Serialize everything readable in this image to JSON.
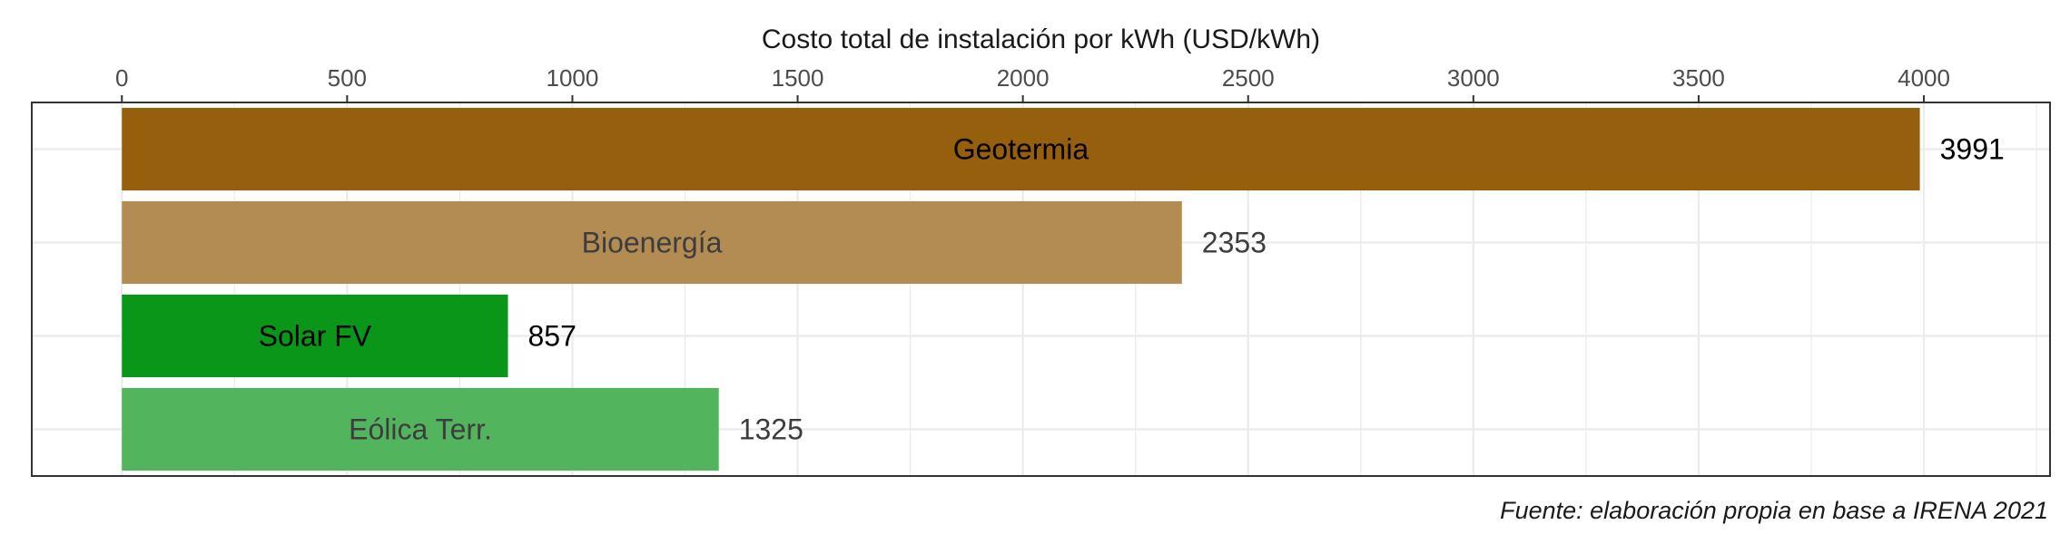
{
  "chart_data": {
    "type": "bar",
    "orientation": "horizontal",
    "xlabel": "Costo total de instalación por kWh (USD/kWh)",
    "xlabel_position": "top",
    "xlim": [
      -200,
      4280
    ],
    "x_ticks": [
      0,
      500,
      1000,
      1500,
      2000,
      2500,
      3000,
      3500,
      4000
    ],
    "grid": true,
    "categories": [
      "Geotermia",
      "Bioenergía",
      "Solar FV",
      "Eólica Terr."
    ],
    "values": [
      3991,
      2353,
      857,
      1325
    ],
    "value_labels": [
      "3991",
      "2353",
      "857",
      "1325"
    ],
    "colors": [
      "#965f0d",
      "#b28c53",
      "#0a9618",
      "#52b45c"
    ],
    "label_colors": [
      "#000000",
      "#3d3d3d",
      "#000000",
      "#3d3d3d"
    ],
    "caption": "Fuente: elaboración propia en base a IRENA 2021"
  }
}
